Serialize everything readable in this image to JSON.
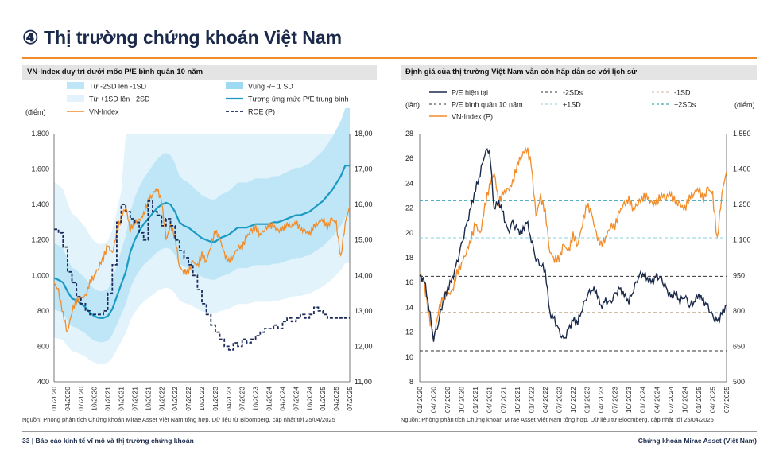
{
  "page": {
    "title": "④ Thị trường chứng khoán Việt Nam",
    "left_panel_title": "VN-Index duy trì dưới mốc P/E bình quân 10 năm",
    "right_panel_title": "Định giá của thị trường Việt Nam vẫn còn hấp dẫn so với lịch sử",
    "source_left": "Nguồn: Phòng phân tích Chứng khoán Mirae Asset Việt Nam tổng hợp,  Dữ liệu từ Bloomberg, cập nhật tới 25/04/2025",
    "source_right": "Nguồn: Phòng phân tích Chứng khoán Mirae Asset Việt Nam tổng hợp,  Dữ liệu từ Bloomberg, cập nhật tới 25/04/2025",
    "footer_left": "33 | Báo cáo kinh tế vĩ mô và thị trường chứng khoán",
    "footer_right": "Chứng khoán Mirae Asset (Việt Nam)"
  },
  "chart_data": [
    {
      "type": "line",
      "title": "VN-Index duy trì dưới mốc P/E bình quân 10 năm",
      "ylabel": "(điểm)",
      "ylim": [
        400,
        1800
      ],
      "yticks": [
        "400",
        "600",
        "800",
        "1.000",
        "1.200",
        "1.400",
        "1.600",
        "1.800"
      ],
      "y2lim": [
        11,
        18
      ],
      "y2ticks": [
        "11,00",
        "12,00",
        "13,00",
        "14,00",
        "15,00",
        "16,00",
        "17,00",
        "18,00"
      ],
      "xticks": [
        "01/2020",
        "04/2020",
        "07/2020",
        "10/2020",
        "01/2021",
        "04/2021",
        "07/2021",
        "10/2021",
        "01/2022",
        "04/2022",
        "07/2022",
        "10/2022",
        "01/2023",
        "04/2023",
        "07/2023",
        "10/2023",
        "01/2024",
        "04/2024",
        "07/2024",
        "10/2024",
        "01/2025",
        "04/2025",
        "07/2025"
      ],
      "legend": [
        "Từ -2SD lên -1SD",
        "Vùng -/+ 1 SD",
        "Từ +1SD lên +2SD",
        "Tương ứng mức P/E trung bình",
        "VN-Index",
        "ROE (P)"
      ],
      "series": [
        {
          "name": "Tương ứng mức P/E trung bình",
          "axis": "left",
          "x": [
            0,
            1,
            2,
            3,
            4,
            5,
            6,
            7,
            8,
            9,
            10,
            11,
            12,
            13,
            14,
            15,
            16,
            17,
            18,
            19,
            20,
            21,
            22,
            23,
            24,
            25,
            26,
            27,
            28,
            29,
            30,
            31,
            32,
            33,
            34,
            35,
            36,
            37,
            38,
            39,
            40,
            41,
            42,
            43,
            44,
            45,
            46,
            47,
            48,
            49,
            50,
            51,
            52,
            53,
            54,
            55,
            56,
            57,
            58,
            59,
            60,
            61,
            62,
            63,
            64,
            65,
            66
          ],
          "values": [
            985,
            975,
            960,
            910,
            870,
            860,
            840,
            820,
            790,
            770,
            760,
            760,
            770,
            810,
            880,
            950,
            1020,
            1130,
            1200,
            1250,
            1290,
            1320,
            1350,
            1380,
            1400,
            1410,
            1400,
            1360,
            1300,
            1280,
            1270,
            1250,
            1230,
            1210,
            1200,
            1190,
            1190,
            1210,
            1220,
            1230,
            1250,
            1270,
            1270,
            1270,
            1280,
            1290,
            1290,
            1290,
            1290,
            1300,
            1300,
            1310,
            1320,
            1330,
            1340,
            1340,
            1350,
            1360,
            1380,
            1400,
            1420,
            1450,
            1480,
            1520,
            1560,
            1620,
            1620
          ]
        },
        {
          "name": "VN-Index",
          "axis": "left",
          "x": [
            0,
            1,
            2,
            3,
            4,
            5,
            6,
            7,
            8,
            9,
            10,
            11,
            12,
            13,
            14,
            15,
            16,
            17,
            18,
            19,
            20,
            21,
            22,
            23,
            24,
            25,
            26,
            27,
            28,
            29,
            30,
            31,
            32,
            33,
            34,
            35,
            36,
            37,
            38,
            39,
            40,
            41,
            42,
            43,
            44,
            45,
            46,
            47,
            48,
            49,
            50,
            51,
            52,
            53,
            54,
            55,
            56,
            57,
            58,
            59,
            60,
            61,
            62,
            63,
            64,
            65,
            66
          ],
          "values": [
            960,
            910,
            780,
            680,
            800,
            860,
            870,
            880,
            960,
            1000,
            1050,
            1100,
            1170,
            1120,
            1240,
            1330,
            1390,
            1260,
            1300,
            1310,
            1340,
            1420,
            1460,
            1490,
            1420,
            1200,
            1280,
            1220,
            1050,
            1020,
            1020,
            1080,
            1050,
            1120,
            1080,
            1170,
            1250,
            1210,
            1120,
            1080,
            1110,
            1160,
            1160,
            1220,
            1250,
            1270,
            1230,
            1260,
            1280,
            1280,
            1250,
            1260,
            1290,
            1280,
            1300,
            1260,
            1250,
            1230,
            1280,
            1300,
            1320,
            1270,
            1320,
            1290,
            1100,
            1300,
            1390
          ]
        },
        {
          "name": "ROE (P)",
          "axis": "right",
          "x": [
            0,
            1,
            2,
            3,
            4,
            5,
            6,
            7,
            8,
            9,
            10,
            11,
            12,
            13,
            14,
            15,
            16,
            17,
            18,
            19,
            20,
            21,
            22,
            23,
            24,
            25,
            26,
            27,
            28,
            29,
            30,
            31,
            32,
            33,
            34,
            35,
            36,
            37,
            38,
            39,
            40,
            41,
            42,
            43,
            44,
            45,
            46,
            47,
            48,
            49,
            50,
            51,
            52,
            53,
            54,
            55,
            56,
            57,
            58,
            59,
            60,
            61,
            62,
            63,
            64,
            65,
            66
          ],
          "values": [
            15.3,
            15.2,
            14.8,
            14.1,
            13.8,
            13.4,
            13.2,
            13.0,
            12.9,
            12.9,
            12.9,
            13.0,
            13.5,
            14.3,
            15.5,
            16.0,
            15.8,
            15.6,
            15.5,
            15.2,
            15.0,
            16.1,
            15.8,
            15.7,
            15.4,
            15.6,
            15.4,
            15.0,
            14.7,
            14.5,
            14.3,
            14.0,
            13.6,
            13.2,
            12.9,
            12.6,
            12.4,
            12.2,
            12.0,
            11.9,
            12.1,
            12.0,
            12.2,
            12.1,
            12.2,
            12.3,
            12.4,
            12.5,
            12.5,
            12.6,
            12.5,
            12.7,
            12.8,
            12.7,
            12.8,
            12.9,
            12.8,
            12.9,
            13.1,
            13.0,
            12.9,
            12.8,
            12.8,
            12.8,
            12.8,
            12.8,
            12.8
          ]
        }
      ],
      "bands": {
        "inner_plus": [
          1.18,
          1.18,
          1.19,
          1.2,
          1.21,
          1.22,
          1.23,
          1.24,
          1.25,
          1.26,
          1.27,
          1.28,
          1.28,
          1.27,
          1.26,
          1.25,
          1.24,
          1.23,
          1.22,
          1.21,
          1.2,
          1.2,
          1.19,
          1.18,
          1.18,
          1.17,
          1.17,
          1.17,
          1.17,
          1.17,
          1.17,
          1.17,
          1.17,
          1.17,
          1.17,
          1.17,
          1.17,
          1.17,
          1.17,
          1.17,
          1.17,
          1.17,
          1.17,
          1.17,
          1.17,
          1.17,
          1.17,
          1.17,
          1.17,
          1.17,
          1.17,
          1.17,
          1.17,
          1.17,
          1.17,
          1.17,
          1.17,
          1.17,
          1.17,
          1.17,
          1.17,
          1.17,
          1.17,
          1.17,
          1.17,
          1.17,
          1.17
        ],
        "note": "band edges expressed as multiples of the P/E-average line"
      }
    },
    {
      "type": "line",
      "title": "Định giá của thị trường Việt Nam vẫn còn hấp dẫn so với lịch sử",
      "ylabel": "(lần)",
      "y2label": "(điểm)",
      "ylim": [
        8,
        28
      ],
      "yticks": [
        "8",
        "10",
        "12",
        "14",
        "16",
        "18",
        "20",
        "22",
        "24",
        "26",
        "28"
      ],
      "y2lim": [
        500,
        1550
      ],
      "y2ticks": [
        "500",
        "650",
        "800",
        "950",
        "1.100",
        "1.250",
        "1.400",
        "1.550"
      ],
      "xticks": [
        "01/2020",
        "04/2020",
        "07/2020",
        "10/2020",
        "01/2021",
        "04/2021",
        "07/2021",
        "10/2021",
        "01/2022",
        "04/2022",
        "07/2022",
        "10/2022",
        "01/2023",
        "04/2023",
        "07/2023",
        "10/2023",
        "01/2024",
        "04/2024",
        "07/2024",
        "10/2024",
        "01/2025",
        "04/2025",
        "07/2025"
      ],
      "legend": [
        "P/E hiện tại",
        "-2SDs",
        "-1SD",
        "P/E bình quân 10 năm",
        "+1SD",
        "+2SDs",
        "VN-Index (P)"
      ],
      "reference_lines": {
        "-2SDs": 10.5,
        "-1SD": 13.6,
        "P/E bình quân 10 năm": 16.5,
        "+1SD": 19.6,
        "+2SDs": 22.6
      },
      "series": [
        {
          "name": "P/E hiện tại",
          "axis": "left",
          "x": [
            0,
            1,
            2,
            3,
            4,
            5,
            6,
            7,
            8,
            9,
            10,
            11,
            12,
            13,
            14,
            15,
            16,
            17,
            18,
            19,
            20,
            21,
            22,
            23,
            24,
            25,
            26,
            27,
            28,
            29,
            30,
            31,
            32,
            33,
            34,
            35,
            36,
            37,
            38,
            39,
            40,
            41,
            42,
            43,
            44,
            45,
            46,
            47,
            48,
            49,
            50,
            51,
            52,
            53,
            54,
            55,
            56,
            57,
            58,
            59,
            60,
            61,
            62,
            63,
            64,
            65,
            66
          ],
          "values": [
            16.5,
            16.2,
            14.0,
            11.5,
            12.8,
            14.5,
            15.5,
            16.3,
            17.5,
            19.0,
            20.5,
            22.0,
            23.5,
            24.8,
            26.5,
            26.8,
            22.0,
            22.5,
            21.5,
            20.0,
            20.8,
            20.2,
            20.0,
            21.0,
            19.5,
            18.0,
            17.5,
            17.0,
            13.5,
            13.0,
            12.0,
            11.3,
            12.2,
            13.0,
            12.8,
            14.0,
            15.0,
            15.5,
            15.3,
            14.0,
            14.5,
            14.3,
            15.0,
            15.5,
            15.0,
            14.5,
            15.5,
            16.5,
            16.8,
            16.3,
            16.0,
            16.5,
            16.2,
            15.5,
            14.8,
            15.2,
            14.5,
            15.0,
            14.2,
            14.5,
            15.0,
            14.5,
            14.0,
            13.2,
            12.8,
            13.5,
            14.2
          ]
        },
        {
          "name": "VN-Index (P)",
          "axis": "right",
          "x": [
            0,
            1,
            2,
            3,
            4,
            5,
            6,
            7,
            8,
            9,
            10,
            11,
            12,
            13,
            14,
            15,
            16,
            17,
            18,
            19,
            20,
            21,
            22,
            23,
            24,
            25,
            26,
            27,
            28,
            29,
            30,
            31,
            32,
            33,
            34,
            35,
            36,
            37,
            38,
            39,
            40,
            41,
            42,
            43,
            44,
            45,
            46,
            47,
            48,
            49,
            50,
            51,
            52,
            53,
            54,
            55,
            56,
            57,
            58,
            59,
            60,
            61,
            62,
            63,
            64,
            65,
            66
          ],
          "values": [
            960,
            910,
            780,
            680,
            800,
            860,
            870,
            880,
            960,
            1000,
            1050,
            1100,
            1170,
            1120,
            1240,
            1330,
            1390,
            1260,
            1300,
            1310,
            1340,
            1420,
            1460,
            1490,
            1420,
            1200,
            1280,
            1220,
            1050,
            1020,
            1020,
            1080,
            1050,
            1120,
            1080,
            1170,
            1250,
            1210,
            1120,
            1080,
            1110,
            1160,
            1160,
            1220,
            1250,
            1270,
            1230,
            1260,
            1280,
            1280,
            1250,
            1260,
            1290,
            1280,
            1300,
            1260,
            1250,
            1230,
            1280,
            1300,
            1320,
            1270,
            1320,
            1290,
            1100,
            1300,
            1390
          ]
        }
      ]
    }
  ],
  "colors": {
    "title": "#1b2a4a",
    "accent_rule": "#f28c28",
    "vnindex": "#f28c28",
    "pe_avg_line": "#1b9ac2",
    "roe": "#1b2a5a",
    "band_inner": "#bfe6f7",
    "band_outer": "#e3f3fb",
    "pe_current": "#1b2a4a",
    "ref_dashed_dark": "#333333",
    "ref_plus1": "#8ad0de",
    "ref_plus2": "#3aa6b8",
    "ref_minus1": "#c8b89a"
  }
}
